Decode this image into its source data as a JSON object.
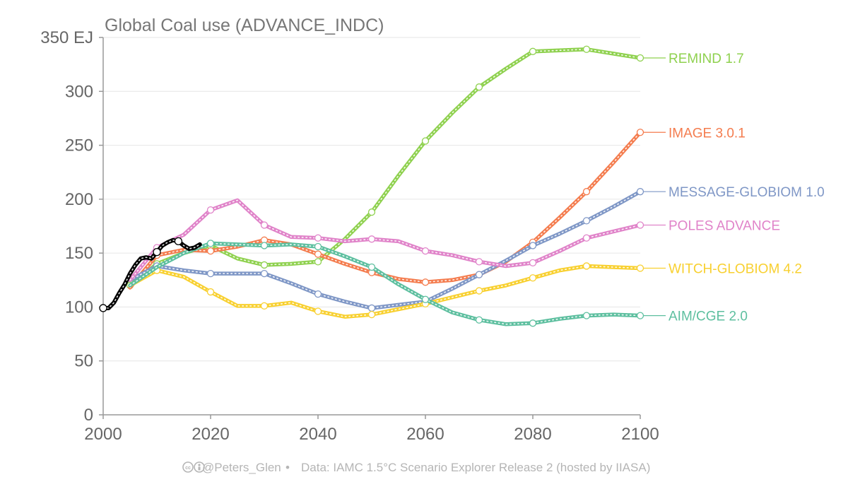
{
  "chart_data": {
    "type": "line",
    "title": "Global Coal use (ADVANCE_INDC)",
    "y_unit": "EJ",
    "xlabel": "",
    "ylabel": "",
    "xlim": [
      2000,
      2100
    ],
    "ylim": [
      0,
      350
    ],
    "x_ticks": [
      2000,
      2020,
      2040,
      2060,
      2080,
      2100
    ],
    "y_ticks": [
      0,
      50,
      100,
      150,
      200,
      250,
      300,
      350
    ],
    "y_tick_labels": [
      "0",
      "50",
      "100",
      "150",
      "200",
      "250",
      "300",
      "350 EJ"
    ],
    "grid": "horizontal",
    "legend": "direct labels at right end of lines",
    "series": [
      {
        "name": "REMIND 1.7",
        "color": "#8fd14f",
        "x": [
          2005,
          2010,
          2015,
          2020,
          2025,
          2030,
          2035,
          2040,
          2045,
          2050,
          2055,
          2060,
          2065,
          2070,
          2075,
          2080,
          2085,
          2090,
          2095,
          2100
        ],
        "y": [
          120,
          140,
          150,
          157,
          145,
          139,
          140,
          142,
          163,
          188,
          222,
          254,
          280,
          304,
          321,
          337,
          338,
          339,
          335,
          331
        ],
        "markers": [
          2005,
          2010,
          2020,
          2030,
          2040,
          2050,
          2060,
          2070,
          2080,
          2090,
          2100
        ]
      },
      {
        "name": "IMAGE 3.0.1",
        "color": "#f47c4e",
        "x": [
          2005,
          2010,
          2015,
          2020,
          2025,
          2030,
          2035,
          2040,
          2045,
          2050,
          2055,
          2060,
          2065,
          2070,
          2075,
          2080,
          2085,
          2090,
          2095,
          2100
        ],
        "y": [
          118,
          148,
          153,
          152,
          156,
          162,
          158,
          149,
          140,
          132,
          126,
          123,
          125,
          130,
          142,
          160,
          183,
          207,
          234,
          262
        ],
        "markers": [
          2010,
          2020,
          2030,
          2040,
          2050,
          2060,
          2070,
          2080,
          2090,
          2100
        ]
      },
      {
        "name": "MESSAGE-GLOBIOM 1.0",
        "color": "#7f97c6",
        "x": [
          2005,
          2010,
          2015,
          2020,
          2025,
          2030,
          2035,
          2040,
          2045,
          2050,
          2055,
          2060,
          2065,
          2070,
          2075,
          2080,
          2085,
          2090,
          2095,
          2100
        ],
        "y": [
          125,
          138,
          134,
          131,
          131,
          131,
          122,
          112,
          105,
          99,
          102,
          105,
          117,
          130,
          143,
          157,
          168,
          180,
          193,
          207
        ],
        "markers": [
          2010,
          2020,
          2030,
          2040,
          2050,
          2060,
          2070,
          2080,
          2090,
          2100
        ]
      },
      {
        "name": "POLES ADVANCE",
        "color": "#e083c9",
        "x": [
          2005,
          2010,
          2015,
          2020,
          2025,
          2030,
          2035,
          2040,
          2045,
          2050,
          2055,
          2060,
          2065,
          2070,
          2075,
          2080,
          2085,
          2090,
          2095,
          2100
        ],
        "y": [
          125,
          155,
          167,
          190,
          199,
          176,
          165,
          164,
          161,
          163,
          161,
          152,
          148,
          142,
          138,
          141,
          152,
          164,
          170,
          176
        ],
        "markers": [
          2010,
          2020,
          2030,
          2040,
          2050,
          2060,
          2070,
          2080,
          2090,
          2100
        ]
      },
      {
        "name": "WITCH-GLOBIOM 4.2",
        "color": "#f8d030",
        "x": [
          2005,
          2010,
          2015,
          2020,
          2025,
          2030,
          2035,
          2040,
          2045,
          2050,
          2055,
          2060,
          2065,
          2070,
          2075,
          2080,
          2085,
          2090,
          2095,
          2100
        ],
        "y": [
          120,
          134,
          128,
          114,
          101,
          101,
          104,
          96,
          91,
          93,
          98,
          103,
          109,
          115,
          120,
          127,
          134,
          138,
          137,
          136
        ],
        "markers": [
          2010,
          2020,
          2030,
          2040,
          2050,
          2060,
          2070,
          2080,
          2090,
          2100
        ]
      },
      {
        "name": "AIM/CGE 2.0",
        "color": "#5dbf9f",
        "x": [
          2005,
          2010,
          2015,
          2020,
          2025,
          2030,
          2035,
          2040,
          2045,
          2050,
          2055,
          2060,
          2065,
          2070,
          2075,
          2080,
          2085,
          2090,
          2095,
          2100
        ],
        "y": [
          120,
          137,
          150,
          159,
          158,
          157,
          158,
          156,
          147,
          137,
          121,
          107,
          95,
          88,
          84,
          85,
          89,
          92,
          93,
          92
        ],
        "markers": [
          2020,
          2030,
          2040,
          2050,
          2060,
          2070,
          2080,
          2090,
          2100
        ]
      },
      {
        "name": "",
        "color": "#000000",
        "x": [
          2000,
          2001,
          2002,
          2003,
          2004,
          2005,
          2006,
          2007,
          2008,
          2009,
          2010,
          2011,
          2012,
          2013,
          2014,
          2015,
          2016,
          2017,
          2018
        ],
        "y": [
          99,
          99,
          104,
          113,
          121,
          131,
          139,
          145,
          146,
          145,
          151,
          157,
          160,
          162,
          161,
          157,
          154,
          155,
          158
        ],
        "markers": [
          2000,
          2010,
          2014
        ],
        "historical": true
      }
    ]
  },
  "footer": {
    "icons": "cc-by-icons",
    "author": "@Peters_Glen",
    "separator": "•",
    "source": "Data: IAMC 1.5°C Scenario Explorer Release 2 (hosted by IIASA)"
  }
}
